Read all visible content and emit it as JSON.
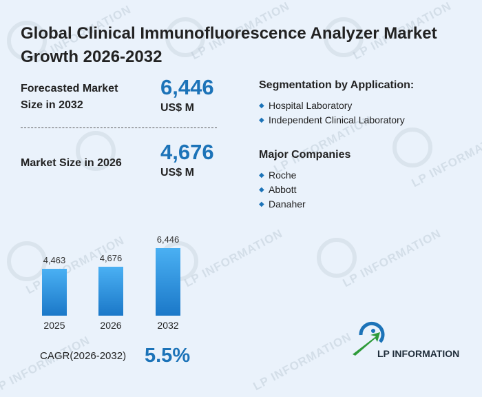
{
  "title": "Global Clinical Immunofluorescence Analyzer Market Growth 2026-2032",
  "forecast": {
    "label_line1": "Forecasted Market",
    "label_line2": "Size in 2032",
    "value": "6,446",
    "unit": "US$ M"
  },
  "current": {
    "label": "Market Size in 2026",
    "value": "4,676",
    "unit": "US$ M"
  },
  "segmentation": {
    "title": "Segmentation by Application:",
    "items": [
      "Hospital Laboratory",
      "Independent Clinical Laboratory"
    ]
  },
  "companies": {
    "title": "Major Companies",
    "items": [
      "Roche",
      "Abbott",
      "Danaher"
    ]
  },
  "chart_data": {
    "type": "bar",
    "categories": [
      "2025",
      "2026",
      "2032"
    ],
    "values": [
      4463,
      4676,
      6446
    ],
    "value_labels": [
      "4,463",
      "4,676",
      "6,446"
    ]
  },
  "cagr": {
    "label": "CAGR(2026-2032)",
    "value": "5.5%"
  },
  "brand": {
    "name": "LP INFORMATION"
  },
  "watermark": "LP INFORMATION",
  "colors": {
    "accent": "#1c73b8",
    "background": "#eaf2fb",
    "logo_green": "#2e9b3a"
  }
}
